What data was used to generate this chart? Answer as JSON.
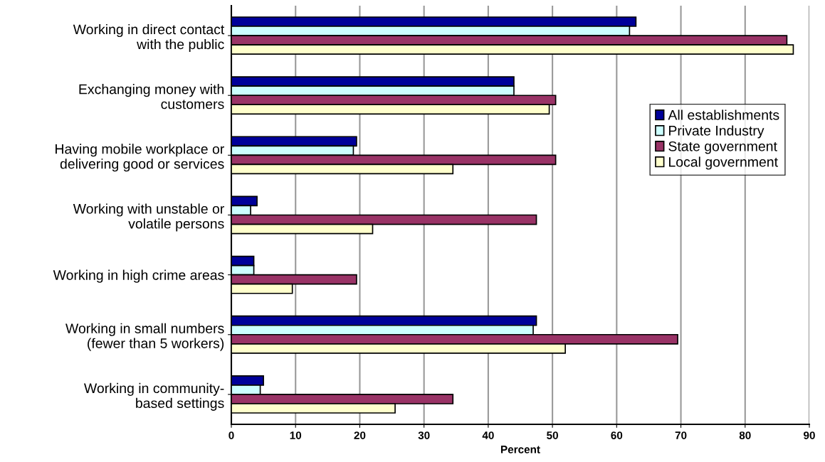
{
  "chart_data": {
    "type": "bar",
    "orientation": "horizontal",
    "categories": [
      "Working in direct contact\nwith the public",
      "Exchanging money with\ncustomers",
      "Having mobile workplace or\ndelivering good or services",
      "Working with unstable or\nvolatile persons",
      "Working in high crime areas",
      "Working in small numbers\n(fewer than 5 workers)",
      "Working in community-\nbased settings"
    ],
    "series": [
      {
        "name": "All establishments",
        "color": "#000099",
        "values": [
          63,
          44,
          19.5,
          4,
          3.5,
          47.5,
          5
        ]
      },
      {
        "name": "Private Industry",
        "color": "#ccffff",
        "values": [
          62,
          44,
          19,
          3,
          3.5,
          47,
          4.5
        ]
      },
      {
        "name": "State government",
        "color": "#993366",
        "values": [
          86.5,
          50.5,
          50.5,
          47.5,
          19.5,
          69.5,
          34.5
        ]
      },
      {
        "name": "Local government",
        "color": "#ffffcc",
        "values": [
          87.5,
          49.5,
          34.5,
          22,
          9.5,
          52,
          25.5
        ]
      }
    ],
    "xlabel": "Percent",
    "xlim": [
      0,
      90
    ],
    "xticks": [
      0,
      10,
      20,
      30,
      40,
      50,
      60,
      70,
      80,
      90
    ],
    "grid": "x",
    "legend": "right"
  }
}
